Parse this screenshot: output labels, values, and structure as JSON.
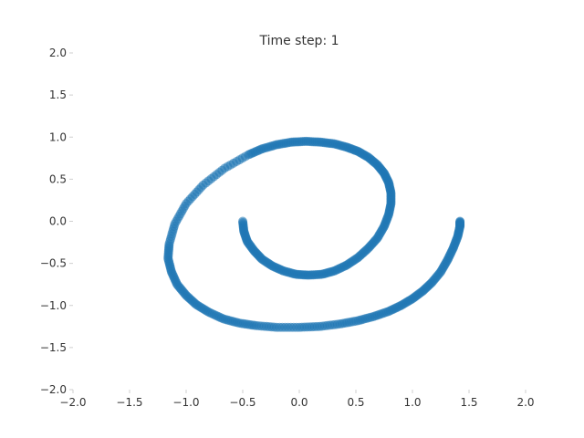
{
  "chart_data": {
    "type": "scatter",
    "title": "Time step: 1",
    "xlabel": "",
    "ylabel": "",
    "xlim": [
      -2.0,
      2.0
    ],
    "ylim": [
      -2.0,
      2.0
    ],
    "x_ticks": [
      -2.0,
      -1.5,
      -1.0,
      -0.5,
      0.0,
      0.5,
      1.0,
      1.5,
      2.0
    ],
    "y_ticks": [
      -2.0,
      -1.5,
      -1.0,
      -0.5,
      0.0,
      0.5,
      1.0,
      1.5,
      2.0
    ],
    "x_tick_labels": [
      "−2.0",
      "−1.5",
      "−1.0",
      "−0.5",
      "0.0",
      "0.5",
      "1.0",
      "1.5",
      "2.0"
    ],
    "y_tick_labels": [
      "−2.0",
      "−1.5",
      "−1.0",
      "−0.5",
      "0.0",
      "0.5",
      "1.0",
      "1.5",
      "2.0"
    ],
    "grid": false,
    "marker_color": "#1f77b4",
    "series": [
      {
        "x": [
          -0.5,
          -0.49,
          -0.46,
          -0.4,
          -0.33,
          -0.24,
          -0.14,
          -0.03,
          0.08,
          0.2,
          0.31,
          0.42,
          0.52,
          0.61,
          0.69,
          0.75,
          0.79,
          0.81,
          0.81,
          0.79,
          0.75,
          0.69,
          0.61,
          0.52,
          0.42,
          0.31,
          0.19,
          0.06,
          -0.07,
          -0.2,
          -0.33,
          -0.45,
          -0.66,
          -0.85,
          -1.0,
          -1.1,
          -1.15,
          -1.16,
          -1.13,
          -1.08,
          -1.0,
          -0.91,
          -0.8,
          -0.67,
          -0.53,
          -0.38,
          -0.2,
          0.0,
          0.18,
          0.36,
          0.52,
          0.66,
          0.79,
          0.9,
          1.0,
          1.09,
          1.17,
          1.25,
          1.31,
          1.36,
          1.4,
          1.42,
          1.42
        ],
        "y": [
          0.0,
          -0.12,
          -0.24,
          -0.35,
          -0.45,
          -0.53,
          -0.59,
          -0.63,
          -0.64,
          -0.63,
          -0.59,
          -0.52,
          -0.43,
          -0.32,
          -0.2,
          -0.06,
          0.08,
          0.21,
          0.34,
          0.46,
          0.57,
          0.67,
          0.76,
          0.83,
          0.88,
          0.92,
          0.94,
          0.95,
          0.94,
          0.91,
          0.86,
          0.79,
          0.63,
          0.43,
          0.21,
          -0.03,
          -0.27,
          -0.44,
          -0.6,
          -0.75,
          -0.88,
          -0.99,
          -1.08,
          -1.16,
          -1.21,
          -1.24,
          -1.26,
          -1.26,
          -1.25,
          -1.22,
          -1.18,
          -1.13,
          -1.07,
          -1.0,
          -0.92,
          -0.83,
          -0.73,
          -0.6,
          -0.46,
          -0.32,
          -0.18,
          -0.06,
          0.0
        ]
      }
    ]
  }
}
